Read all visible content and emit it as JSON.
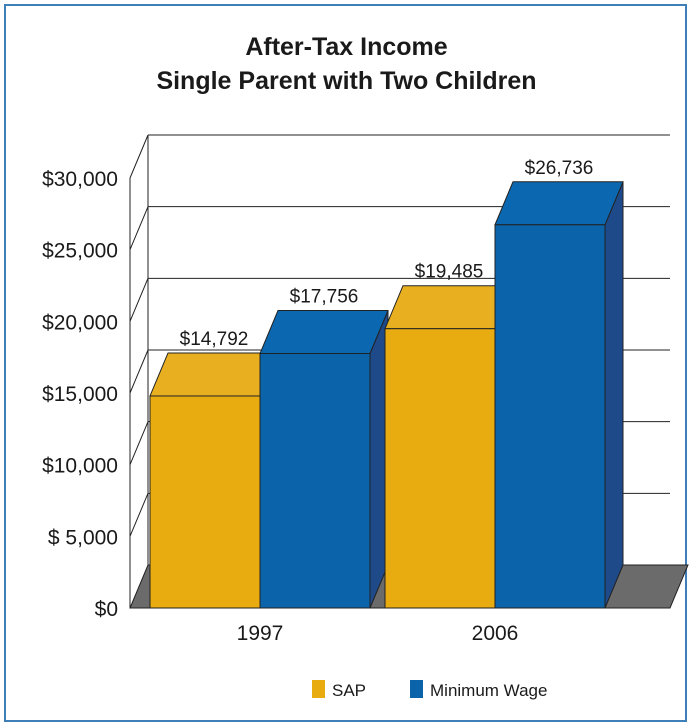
{
  "chart_data": {
    "type": "bar",
    "title": "After-Tax Income",
    "subtitle": "Single Parent with Two Children",
    "categories": [
      "1997",
      "2006"
    ],
    "series": [
      {
        "name": "SAP",
        "values": [
          14792,
          19485
        ],
        "labels": [
          "$14,792",
          "$19,485"
        ],
        "color": "#e8ab10",
        "top_color": "#e8b020",
        "side_color": "#c48e06"
      },
      {
        "name": "Minimum Wage",
        "values": [
          17756,
          26736
        ],
        "labels": [
          "$17,756",
          "$26,736"
        ],
        "color": "#0b63aa",
        "top_color": "#0b68b0",
        "side_color": "#1f4a8a"
      }
    ],
    "ylim": [
      0,
      30000
    ],
    "yticks": [
      0,
      5000,
      10000,
      15000,
      20000,
      25000,
      30000
    ],
    "ytick_labels": [
      "$0",
      "$ 5,000",
      "$10,000",
      "$15,000",
      "$20,000",
      "$25,000",
      "$30,000"
    ],
    "grid": true,
    "legend_position": "bottom"
  },
  "colors": {
    "border": "#3f7fb8",
    "floor": "#6b6b6b"
  }
}
